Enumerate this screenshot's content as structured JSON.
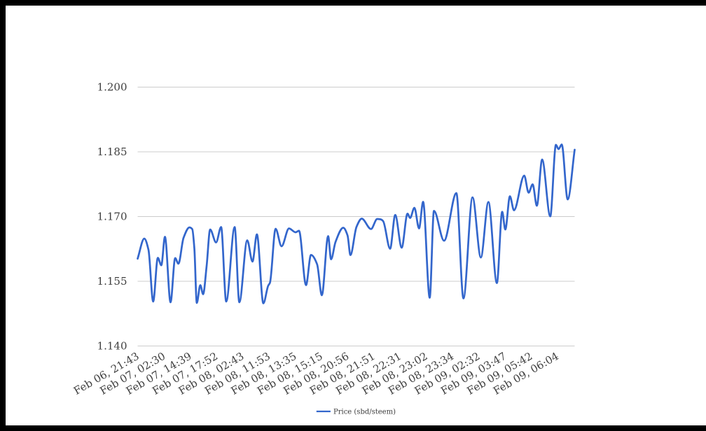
{
  "chart_data": {
    "type": "line",
    "title": "",
    "legend": {
      "position": "bottom",
      "label": "Price (sbd/steem)"
    },
    "ylim": [
      1.14,
      1.2
    ],
    "y_ticks": [
      {
        "value": 1.2,
        "label": "1.200"
      },
      {
        "value": 1.185,
        "label": "1.185"
      },
      {
        "value": 1.17,
        "label": "1.170"
      },
      {
        "value": 1.155,
        "label": "1.155"
      },
      {
        "value": 1.14,
        "label": "1.140"
      }
    ],
    "x_tick_labels": [
      "Feb 06, 21:43",
      "Feb 07, 02:30",
      "Feb 07, 14:39",
      "Feb 07, 17:52",
      "Feb 08, 02:43",
      "Feb 08, 11:53",
      "Feb 08, 13:35",
      "Feb 08, 15:15",
      "Feb 08, 20:56",
      "Feb 08, 21:51",
      "Feb 08, 22:31",
      "Feb 08, 23:02",
      "Feb 08, 23:34",
      "Feb 09, 02:32",
      "Feb 09, 03:47",
      "Feb 09, 05:42",
      "Feb 09, 06:04"
    ],
    "grid": true,
    "series": [
      {
        "name": "Price (sbd/steem)",
        "color": "#3366cc",
        "points": [
          [
            0.0,
            1.16016
          ],
          [
            0.0152,
            1.16481
          ],
          [
            0.0248,
            1.16222
          ],
          [
            0.0356,
            1.15022
          ],
          [
            0.0462,
            1.16035
          ],
          [
            0.0542,
            1.15863
          ],
          [
            0.0625,
            1.16522
          ],
          [
            0.0753,
            1.15005
          ],
          [
            0.0859,
            1.1603
          ],
          [
            0.0933,
            1.15899
          ],
          [
            0.105,
            1.16497
          ],
          [
            0.1186,
            1.16741
          ],
          [
            0.125,
            1.167
          ],
          [
            0.1298,
            1.16254
          ],
          [
            0.1354,
            1.14989
          ],
          [
            0.1434,
            1.15403
          ],
          [
            0.1498,
            1.15192
          ],
          [
            0.1579,
            1.15849
          ],
          [
            0.1659,
            1.16692
          ],
          [
            0.1795,
            1.16392
          ],
          [
            0.191,
            1.16749
          ],
          [
            0.2027,
            1.15022
          ],
          [
            0.222,
            1.16749
          ],
          [
            0.2327,
            1.15005
          ],
          [
            0.2508,
            1.16441
          ],
          [
            0.2628,
            1.15948
          ],
          [
            0.2729,
            1.16578
          ],
          [
            0.2877,
            1.14981
          ],
          [
            0.2987,
            1.15388
          ],
          [
            0.3027,
            1.15456
          ],
          [
            0.3157,
            1.16708
          ],
          [
            0.3293,
            1.16303
          ],
          [
            0.3463,
            1.16716
          ],
          [
            0.3615,
            1.16627
          ],
          [
            0.3692,
            1.16663
          ],
          [
            0.3853,
            1.15403
          ],
          [
            0.3966,
            1.16103
          ],
          [
            0.4106,
            1.15888
          ],
          [
            0.4215,
            1.15168
          ],
          [
            0.4359,
            1.16538
          ],
          [
            0.4426,
            1.16001
          ],
          [
            0.4527,
            1.164
          ],
          [
            0.4704,
            1.16732
          ],
          [
            0.4803,
            1.16554
          ],
          [
            0.4869,
            1.161
          ],
          [
            0.5008,
            1.16754
          ],
          [
            0.5128,
            1.16943
          ],
          [
            0.534,
            1.16703
          ],
          [
            0.5481,
            1.16935
          ],
          [
            0.5561,
            1.16927
          ],
          [
            0.5617,
            1.16886
          ],
          [
            0.5777,
            1.16246
          ],
          [
            0.5894,
            1.17028
          ],
          [
            0.6042,
            1.1627
          ],
          [
            0.6175,
            1.1706
          ],
          [
            0.6234,
            1.16959
          ],
          [
            0.6333,
            1.17195
          ],
          [
            0.6439,
            1.16716
          ],
          [
            0.6532,
            1.17332
          ],
          [
            0.6683,
            1.15111
          ],
          [
            0.678,
            1.17125
          ],
          [
            0.7011,
            1.16432
          ],
          [
            0.7293,
            1.17535
          ],
          [
            0.7455,
            1.15095
          ],
          [
            0.7663,
            1.17436
          ],
          [
            0.7853,
            1.16043
          ],
          [
            0.8026,
            1.17328
          ],
          [
            0.822,
            1.15451
          ],
          [
            0.8341,
            1.17101
          ],
          [
            0.8413,
            1.16692
          ],
          [
            0.8518,
            1.17462
          ],
          [
            0.8611,
            1.17138
          ],
          [
            0.8846,
            1.17941
          ],
          [
            0.8946,
            1.17545
          ],
          [
            0.9038,
            1.17738
          ],
          [
            0.9135,
            1.17243
          ],
          [
            0.9255,
            1.18314
          ],
          [
            0.9441,
            1.16997
          ],
          [
            0.9571,
            1.18654
          ],
          [
            0.9631,
            1.18555
          ],
          [
            0.9704,
            1.18662
          ],
          [
            0.984,
            1.17389
          ],
          [
            1.0,
            1.18541
          ]
        ]
      }
    ]
  },
  "frame": {
    "color": "#000000"
  },
  "style": {
    "gridline_color": "#cccccc",
    "axis_label_color": "#404040",
    "legend_label_color": "#3b3b3b"
  }
}
